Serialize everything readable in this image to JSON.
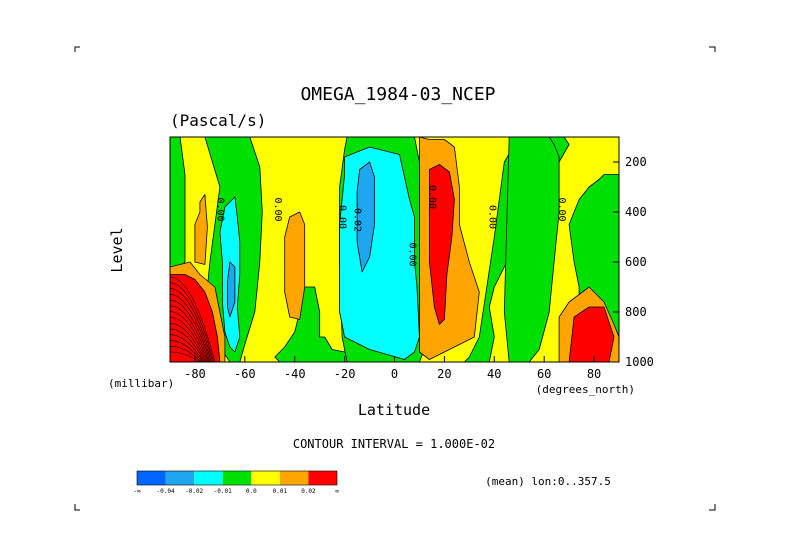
{
  "chart_data": {
    "type": "heatmap",
    "subtype": "filled-contour",
    "title": "OMEGA_1984-03_NCEP",
    "units": "(Pascal/s)",
    "xlabel": "Latitude",
    "ylabel": "Level",
    "xunits": "(degrees_north)",
    "yunits": "(millibar)",
    "xlim": [
      -90,
      90
    ],
    "ylim": [
      1000,
      100
    ],
    "xticks": [
      -80,
      -60,
      -40,
      -20,
      0,
      20,
      40,
      60,
      80
    ],
    "xtick_labels": [
      "-80",
      "-60",
      "-40",
      "-20",
      "0",
      "20",
      "40",
      "60",
      "80"
    ],
    "yticks": [
      200,
      400,
      600,
      800,
      1000
    ],
    "ytick_labels": [
      "200",
      "400",
      "600",
      "800",
      "1000"
    ],
    "contour_interval_text": "CONTOUR INTERVAL = 1.000E-02",
    "annotation": "(mean) lon:0..357.5",
    "contour_labels": [
      {
        "text": "0.00",
        "lat": -71,
        "level": 390
      },
      {
        "text": "0.00",
        "lat": -48,
        "level": 390
      },
      {
        "text": "0.00",
        "lat": -22,
        "level": 420
      },
      {
        "text": "-0.02",
        "lat": -16,
        "level": 420
      },
      {
        "text": "0.00",
        "lat": 6,
        "level": 570
      },
      {
        "text": "0.00",
        "lat": 14,
        "level": 340
      },
      {
        "text": "0.00",
        "lat": 38,
        "level": 420
      },
      {
        "text": "0.00",
        "lat": 66,
        "level": 390
      }
    ],
    "colorbar": {
      "colors": [
        "#0066ff",
        "#1ea7f0",
        "#00ffff",
        "#00e000",
        "#ffff00",
        "#ffa500",
        "#ff0000"
      ],
      "labels": [
        "-∞",
        "-0.04",
        "-0.02",
        "-0.01",
        "0.0",
        "0.01",
        "0.02",
        "∞"
      ]
    },
    "regions": [
      {
        "color": "#ffff00",
        "latRange": [
          -90,
          90
        ],
        "levelRange": [
          100,
          1000
        ],
        "shape": "background"
      },
      {
        "color": "#00e000",
        "lats": [
          -90,
          -86,
          -84,
          -84,
          -88,
          -90
        ],
        "levels": [
          100,
          100,
          250,
          600,
          650,
          650
        ]
      },
      {
        "color": "#00e000",
        "lats": [
          -76,
          -66,
          -58,
          -54,
          -53,
          -54,
          -56,
          -60,
          -62,
          -66,
          -70,
          -74,
          -76,
          -74,
          -70
        ],
        "levels": [
          100,
          100,
          100,
          220,
          400,
          600,
          800,
          930,
          1000,
          1000,
          940,
          880,
          800,
          600,
          300
        ]
      },
      {
        "color": "#00e000",
        "lats": [
          -38,
          -32,
          -30,
          -30,
          -28,
          -25,
          -20,
          -18,
          -20,
          -36,
          -40,
          -44,
          -46,
          -48,
          -44,
          -40,
          -38
        ],
        "levels": [
          700,
          700,
          800,
          900,
          900,
          950,
          960,
          1000,
          1000,
          1000,
          1000,
          1000,
          1000,
          980,
          940,
          880,
          800
        ]
      },
      {
        "color": "#00e000",
        "lats": [
          -19,
          8,
          10,
          10,
          11,
          12,
          12,
          10,
          4,
          -10,
          -19,
          -21,
          -22,
          -22,
          -20
        ],
        "levels": [
          100,
          100,
          200,
          400,
          600,
          800,
          950,
          1000,
          1000,
          1000,
          1000,
          900,
          600,
          300,
          150
        ]
      },
      {
        "color": "#00e000",
        "lats": [
          28,
          38,
          40,
          38,
          40,
          44,
          48,
          52,
          56,
          60,
          62,
          66,
          70,
          68,
          60,
          50,
          44,
          40,
          34,
          30
        ],
        "levels": [
          1000,
          1000,
          900,
          780,
          700,
          620,
          560,
          500,
          420,
          300,
          250,
          200,
          130,
          100,
          100,
          100,
          200,
          500,
          900,
          980
        ]
      },
      {
        "color": "#00e000",
        "lats": [
          46,
          52,
          62,
          64,
          66,
          66,
          64,
          62,
          58,
          54,
          50,
          46,
          44
        ],
        "levels": [
          100,
          100,
          100,
          130,
          180,
          400,
          600,
          800,
          950,
          1000,
          1000,
          1000,
          800
        ]
      },
      {
        "color": "#00e000",
        "lats": [
          84,
          90,
          90,
          86,
          82,
          78,
          76,
          74,
          74,
          72,
          70,
          74,
          78,
          82
        ],
        "levels": [
          250,
          250,
          1000,
          1000,
          900,
          830,
          780,
          760,
          700,
          600,
          450,
          350,
          300,
          270
        ]
      },
      {
        "color": "#00ffff",
        "lats": [
          -68,
          -64,
          -63,
          -62,
          -62,
          -63,
          -62,
          -64,
          -66,
          -68,
          -69,
          -69,
          -70
        ],
        "levels": [
          380,
          340,
          420,
          520,
          650,
          780,
          900,
          960,
          940,
          880,
          760,
          600,
          480
        ]
      },
      {
        "color": "#00ffff",
        "lats": [
          -20,
          -10,
          2,
          4,
          6,
          8,
          8,
          9,
          10,
          8,
          4,
          -10,
          -20,
          -22,
          -22,
          -20
        ],
        "levels": [
          180,
          140,
          170,
          260,
          350,
          420,
          600,
          700,
          900,
          960,
          990,
          950,
          900,
          800,
          450,
          250
        ]
      },
      {
        "color": "#1ea7f0",
        "lats": [
          -14,
          -10,
          -8,
          -8,
          -10,
          -13,
          -15,
          -15
        ],
        "levels": [
          230,
          200,
          260,
          450,
          580,
          640,
          520,
          320
        ]
      },
      {
        "color": "#1ea7f0",
        "lats": [
          -66,
          -64,
          -64,
          -66,
          -67,
          -67
        ],
        "levels": [
          600,
          620,
          760,
          820,
          780,
          680
        ]
      },
      {
        "color": "#ffa500",
        "lats": [
          10,
          14,
          20,
          24,
          26,
          26,
          30,
          34,
          32,
          26,
          20,
          14,
          10,
          10
        ],
        "levels": [
          100,
          110,
          110,
          140,
          300,
          450,
          600,
          720,
          900,
          930,
          960,
          990,
          960,
          500
        ]
      },
      {
        "color": "#ffa500",
        "lats": [
          -42,
          -38,
          -36,
          -36,
          -38,
          -42,
          -44,
          -44
        ],
        "levels": [
          420,
          400,
          450,
          700,
          830,
          820,
          720,
          500
        ]
      },
      {
        "color": "#ffa500",
        "lats": [
          -78,
          -76,
          -75,
          -76,
          -80,
          -80,
          -78
        ],
        "levels": [
          360,
          330,
          460,
          610,
          600,
          450,
          400
        ]
      },
      {
        "color": "#ffa500",
        "lats": [
          66,
          70,
          74,
          78,
          84,
          88,
          90,
          90,
          66
        ],
        "levels": [
          820,
          760,
          730,
          700,
          760,
          850,
          900,
          1000,
          1000
        ]
      },
      {
        "color": "#ffa500",
        "lats": [
          -90,
          -82,
          -78,
          -72,
          -70,
          -68,
          -68,
          -90
        ],
        "levels": [
          620,
          600,
          650,
          700,
          800,
          900,
          1000,
          1000
        ]
      },
      {
        "color": "#ff0000",
        "lats": [
          14,
          18,
          22,
          24,
          23,
          21,
          20,
          18,
          16,
          14,
          14
        ],
        "levels": [
          230,
          210,
          240,
          350,
          500,
          650,
          830,
          850,
          780,
          600,
          400
        ]
      },
      {
        "color": "#ff0000",
        "lats": [
          72,
          78,
          84,
          88,
          86,
          70
        ],
        "levels": [
          820,
          780,
          780,
          900,
          1000,
          1000
        ]
      },
      {
        "color": "#ff0000",
        "lats": [
          -90,
          -84,
          -80,
          -76,
          -73,
          -71,
          -70,
          -90
        ],
        "levels": [
          650,
          650,
          670,
          720,
          800,
          900,
          1000,
          1000
        ]
      }
    ],
    "grid": false
  }
}
